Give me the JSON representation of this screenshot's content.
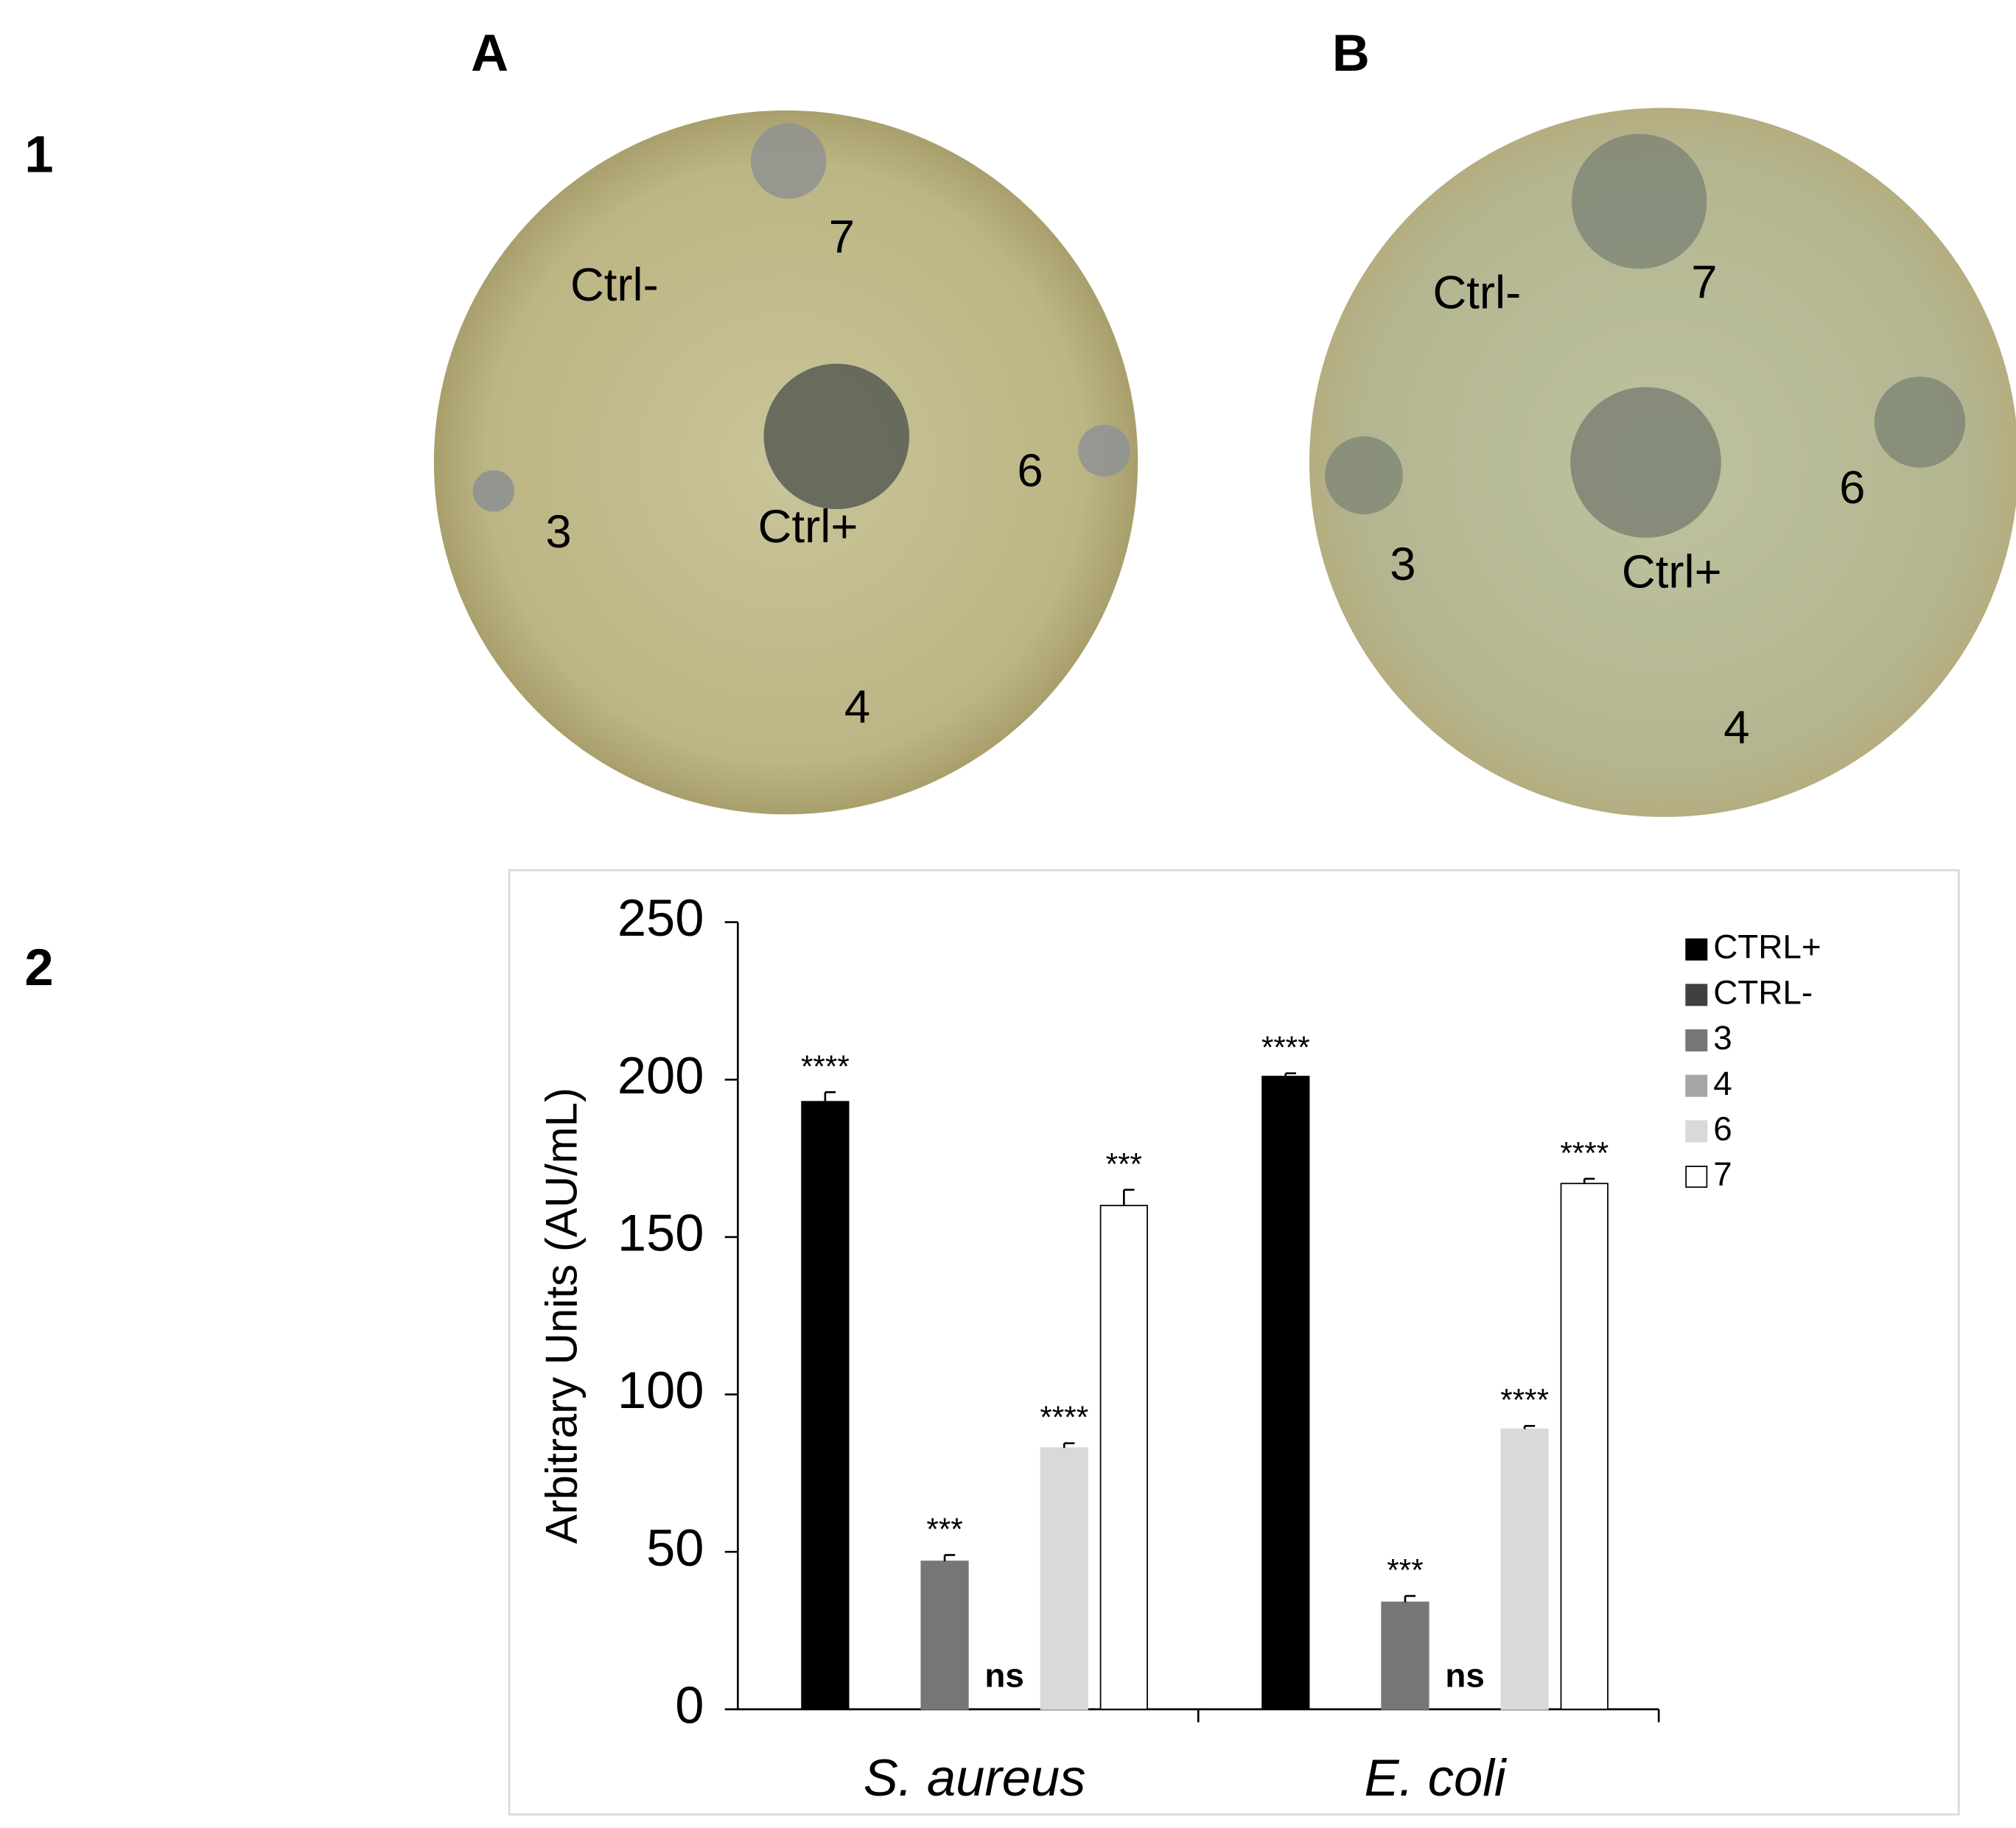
{
  "figure": {
    "row_labels": [
      "1",
      "2"
    ],
    "panel_labels": [
      "A",
      "B"
    ],
    "plates": [
      {
        "labels": [
          "Ctrl-",
          "7",
          "6",
          "Ctrl+",
          "3",
          "4"
        ]
      },
      {
        "labels": [
          "Ctrl-",
          "7",
          "6",
          "Ctrl+",
          "3",
          "4"
        ]
      }
    ]
  },
  "chart_data": {
    "type": "bar",
    "y_label": "Arbitrary Units (AU/mL)",
    "categories": [
      "S. aureus",
      "E. coli"
    ],
    "ylim": [
      0,
      250
    ],
    "yticks": [
      0,
      50,
      100,
      150,
      200,
      250
    ],
    "series": [
      {
        "name": "CTRL+",
        "color": "#000000",
        "values": [
          193,
          201
        ],
        "errors": [
          3,
          1
        ],
        "annotations": [
          "****",
          "****"
        ]
      },
      {
        "name": "CTRL-",
        "color": "#404040",
        "values": [
          0,
          0
        ],
        "errors": [
          null,
          null
        ],
        "annotations": [
          null,
          null
        ]
      },
      {
        "name": "3",
        "color": "#767676",
        "values": [
          47,
          34
        ],
        "errors": [
          2,
          2
        ],
        "annotations": [
          "***",
          "***"
        ]
      },
      {
        "name": "4",
        "color": "#a6a6a6",
        "values": [
          0,
          0
        ],
        "errors": [
          null,
          null
        ],
        "annotations": [
          "ns",
          "ns"
        ]
      },
      {
        "name": "6",
        "color": "#d9d9d9",
        "values": [
          83,
          89
        ],
        "errors": [
          1.5,
          1
        ],
        "annotations": [
          "****",
          "****"
        ]
      },
      {
        "name": "7",
        "color": "#ffffff",
        "values": [
          160,
          167
        ],
        "errors": [
          5,
          1.5
        ],
        "annotations": [
          "***",
          "****"
        ]
      }
    ]
  }
}
